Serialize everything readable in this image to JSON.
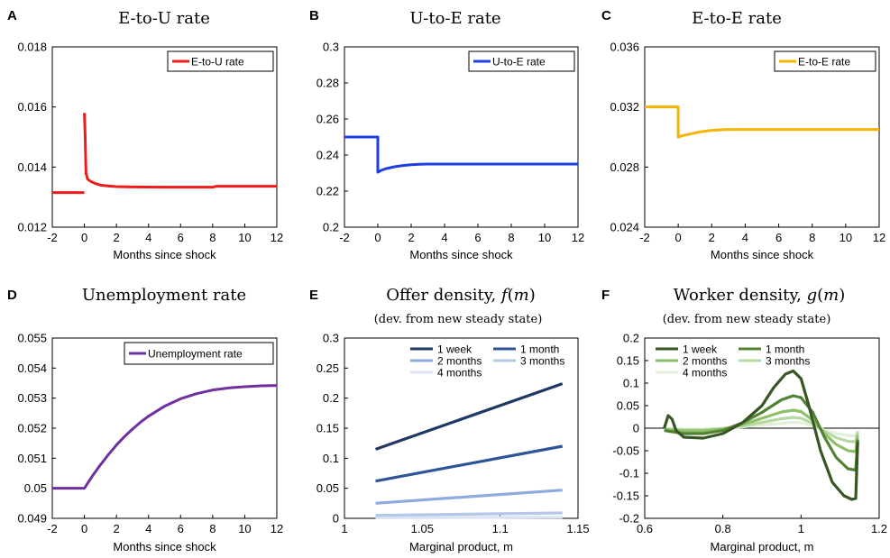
{
  "chart_data": [
    {
      "panel": "A",
      "type": "line",
      "title": "E-to-U rate",
      "xlabel": "Months since shock",
      "ylabel": "",
      "xlim": [
        -2,
        12
      ],
      "ylim": [
        0.012,
        0.018
      ],
      "xticks": [
        "-2",
        "0",
        "2",
        "4",
        "6",
        "8",
        "10",
        "12"
      ],
      "yticks": [
        "0.012",
        "0.014",
        "0.016",
        "0.018"
      ],
      "legend": "top-right",
      "series": [
        {
          "name": "E-to-U rate",
          "color": "#ee1c1c",
          "x": [
            -2,
            0,
            0,
            0.05,
            0.1,
            0.2,
            0.4,
            0.7,
            1.0,
            1.5,
            2.0,
            3,
            5,
            8,
            8.2,
            12
          ],
          "y": [
            0.01315,
            0.01315,
            0.0158,
            0.015,
            0.0138,
            0.0136,
            0.01352,
            0.01345,
            0.0134,
            0.01337,
            0.01335,
            0.01334,
            0.01333,
            0.01333,
            0.01336,
            0.01336
          ]
        }
      ]
    },
    {
      "panel": "B",
      "type": "line",
      "title": "U-to-E rate",
      "xlabel": "Months since shock",
      "ylabel": "",
      "xlim": [
        -2,
        12
      ],
      "ylim": [
        0.2,
        0.3
      ],
      "xticks": [
        "-2",
        "0",
        "2",
        "4",
        "6",
        "8",
        "10",
        "12"
      ],
      "yticks": [
        "0.2",
        "0.22",
        "0.24",
        "0.26",
        "0.28",
        "0.3"
      ],
      "legend": "top-right",
      "series": [
        {
          "name": "U-to-E rate",
          "color": "#1f3ee0",
          "x": [
            -2,
            0,
            0,
            0.2,
            0.5,
            1.0,
            1.5,
            2.0,
            2.5,
            3,
            12
          ],
          "y": [
            0.25,
            0.25,
            0.2305,
            0.2315,
            0.2325,
            0.2335,
            0.2342,
            0.2346,
            0.2349,
            0.235,
            0.235
          ]
        }
      ]
    },
    {
      "panel": "C",
      "type": "line",
      "title": "E-to-E rate",
      "xlabel": "Months since shock",
      "ylabel": "",
      "xlim": [
        -2,
        12
      ],
      "ylim": [
        0.024,
        0.036
      ],
      "xticks": [
        "-2",
        "0",
        "2",
        "4",
        "6",
        "8",
        "10",
        "12"
      ],
      "yticks": [
        "0.024",
        "0.028",
        "0.032",
        "0.036"
      ],
      "legend": "top-right",
      "series": [
        {
          "name": "E-to-E rate",
          "color": "#f4b400",
          "x": [
            -2,
            0,
            0,
            0.3,
            0.7,
            1.2,
            1.8,
            2.5,
            3,
            12
          ],
          "y": [
            0.032,
            0.032,
            0.03,
            0.0301,
            0.0302,
            0.03032,
            0.03042,
            0.03048,
            0.0305,
            0.0305
          ]
        }
      ]
    },
    {
      "panel": "D",
      "type": "line",
      "title": "Unemployment rate",
      "xlabel": "Months since shock",
      "ylabel": "",
      "xlim": [
        -2,
        12
      ],
      "ylim": [
        0.049,
        0.055
      ],
      "xticks": [
        "-2",
        "0",
        "2",
        "4",
        "6",
        "8",
        "10",
        "12"
      ],
      "yticks": [
        "0.049",
        "0.05",
        "0.051",
        "0.052",
        "0.053",
        "0.054",
        "0.055"
      ],
      "legend": "top-right",
      "series": [
        {
          "name": "Unemployment rate",
          "color": "#7030a0",
          "x": [
            -2,
            0,
            0.5,
            1,
            1.5,
            2,
            2.5,
            3,
            3.5,
            4,
            5,
            6,
            7,
            8,
            9,
            10,
            11,
            12
          ],
          "y": [
            0.05,
            0.05,
            0.05041,
            0.05078,
            0.05112,
            0.05144,
            0.05172,
            0.05197,
            0.0522,
            0.0524,
            0.05273,
            0.05298,
            0.05315,
            0.05327,
            0.05334,
            0.05338,
            0.05341,
            0.05342
          ]
        }
      ]
    },
    {
      "panel": "E",
      "type": "line",
      "title": "Offer density, f(m)",
      "subtitle": "(dev. from new steady state)",
      "xlabel": "Marginal product, m",
      "ylabel": "",
      "xlim": [
        1,
        1.15
      ],
      "ylim": [
        0,
        0.3
      ],
      "xticks": [
        "1",
        "1.05",
        "1.1",
        "1.15"
      ],
      "yticks": [
        "0",
        "0.05",
        "0.1",
        "0.15",
        "0.2",
        "0.25",
        "0.3"
      ],
      "legend": "top-right",
      "series": [
        {
          "name": "1 week",
          "color": "#1f3864",
          "x": [
            1.02,
            1.14
          ],
          "y": [
            0.115,
            0.224
          ]
        },
        {
          "name": "1 month",
          "color": "#2f5597",
          "x": [
            1.02,
            1.14
          ],
          "y": [
            0.062,
            0.12
          ]
        },
        {
          "name": "2 months",
          "color": "#8faadc",
          "x": [
            1.02,
            1.14
          ],
          "y": [
            0.025,
            0.047
          ]
        },
        {
          "name": "3 months",
          "color": "#b4c7e7",
          "x": [
            1.02,
            1.14
          ],
          "y": [
            0.005,
            0.009
          ]
        },
        {
          "name": "4 months",
          "color": "#dae3f3",
          "x": [
            1.02,
            1.14
          ],
          "y": [
            0.001,
            0.002
          ]
        }
      ]
    },
    {
      "panel": "F",
      "type": "line",
      "title": "Worker density, g(m)",
      "subtitle": "(dev. from new steady state)",
      "xlabel": "Marginal product, m",
      "ylabel": "",
      "xlim": [
        0.6,
        1.2
      ],
      "ylim": [
        -0.2,
        0.2
      ],
      "xticks": [
        "0.6",
        "0.8",
        "1",
        "1.2"
      ],
      "yticks": [
        "-0.2",
        "-0.15",
        "-0.1",
        "-0.05",
        "0",
        "0.05",
        "0.1",
        "0.15",
        "0.2"
      ],
      "legend": "top-left",
      "series": [
        {
          "name": "1 week",
          "color": "#375623",
          "x": [
            0.65,
            0.66,
            0.67,
            0.68,
            0.7,
            0.75,
            0.8,
            0.85,
            0.9,
            0.93,
            0.96,
            0.98,
            1.0,
            1.02,
            1.05,
            1.08,
            1.11,
            1.13,
            1.14,
            1.145
          ],
          "y": [
            0.0,
            0.028,
            0.02,
            -0.005,
            -0.02,
            -0.022,
            -0.012,
            0.012,
            0.05,
            0.09,
            0.12,
            0.127,
            0.11,
            0.05,
            -0.05,
            -0.12,
            -0.15,
            -0.158,
            -0.156,
            -0.03
          ]
        },
        {
          "name": "1 month",
          "color": "#548235",
          "x": [
            0.65,
            0.7,
            0.75,
            0.8,
            0.85,
            0.9,
            0.95,
            0.98,
            1.0,
            1.03,
            1.06,
            1.09,
            1.12,
            1.14,
            1.145
          ],
          "y": [
            -0.005,
            -0.012,
            -0.012,
            -0.005,
            0.012,
            0.035,
            0.063,
            0.072,
            0.068,
            0.035,
            -0.02,
            -0.065,
            -0.09,
            -0.093,
            -0.025
          ]
        },
        {
          "name": "2 months",
          "color": "#8dbf6a",
          "x": [
            0.65,
            0.7,
            0.75,
            0.8,
            0.85,
            0.9,
            0.95,
            0.98,
            1.0,
            1.03,
            1.06,
            1.09,
            1.12,
            1.14,
            1.145
          ],
          "y": [
            -0.003,
            -0.006,
            -0.006,
            -0.002,
            0.008,
            0.022,
            0.036,
            0.04,
            0.037,
            0.018,
            -0.012,
            -0.036,
            -0.05,
            -0.052,
            -0.015
          ]
        },
        {
          "name": "3 months",
          "color": "#b8d8a2",
          "x": [
            0.65,
            0.7,
            0.75,
            0.8,
            0.85,
            0.9,
            0.95,
            0.98,
            1.0,
            1.03,
            1.06,
            1.09,
            1.12,
            1.14,
            1.145
          ],
          "y": [
            -0.002,
            -0.004,
            -0.004,
            -0.001,
            0.005,
            0.013,
            0.021,
            0.024,
            0.022,
            0.011,
            -0.007,
            -0.021,
            -0.029,
            -0.03,
            -0.008
          ]
        },
        {
          "name": "4 months",
          "color": "#e2efd9",
          "x": [
            0.65,
            0.7,
            0.75,
            0.8,
            0.85,
            0.9,
            0.95,
            0.98,
            1.0,
            1.03,
            1.06,
            1.09,
            1.12,
            1.14,
            1.145
          ],
          "y": [
            -0.001,
            -0.002,
            -0.002,
            0.0,
            0.003,
            0.007,
            0.011,
            0.013,
            0.012,
            0.006,
            -0.004,
            -0.012,
            -0.016,
            -0.017,
            -0.004
          ]
        }
      ]
    }
  ]
}
